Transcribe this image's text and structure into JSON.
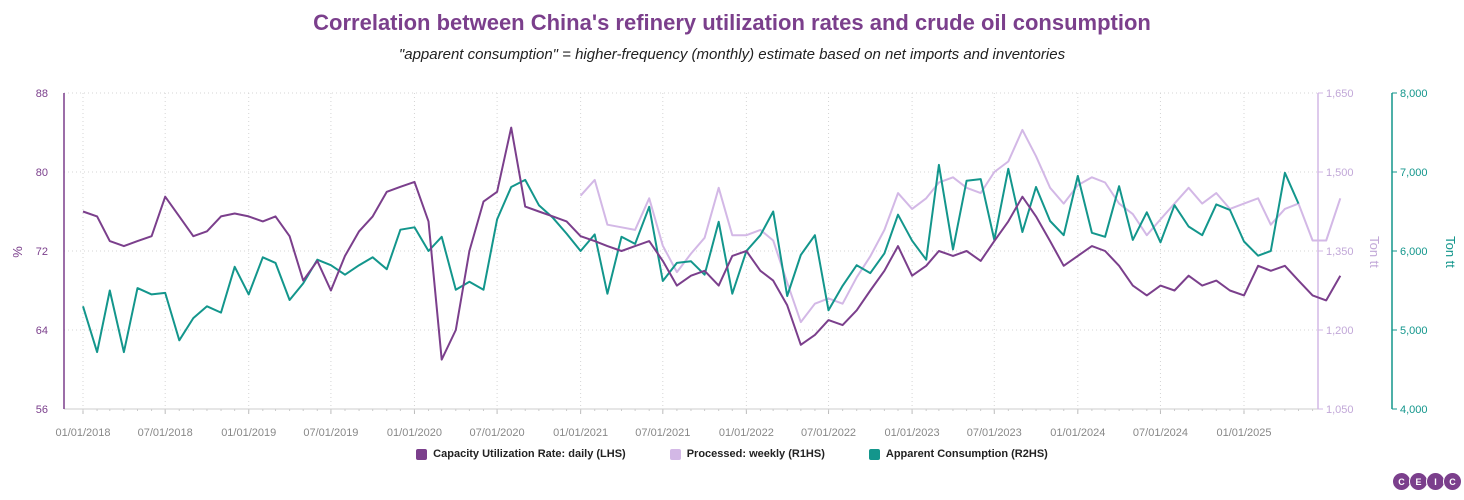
{
  "chart_data": {
    "type": "line",
    "title": "Correlation between China's refinery utilization rates and crude oil consumption",
    "subtitle": "\"apparent consumption\" = higher-frequency (monthly) estimate based on net imports and inventories",
    "x_ticks": [
      "01/01/2018",
      "07/01/2018",
      "01/01/2019",
      "07/01/2019",
      "01/01/2020",
      "07/01/2020",
      "01/01/2021",
      "07/01/2021",
      "01/01/2022",
      "07/01/2022",
      "01/01/2023",
      "07/01/2023",
      "01/01/2024",
      "07/01/2024",
      "01/01/2025"
    ],
    "y_left": {
      "label": "%",
      "ylim": [
        56,
        88
      ],
      "ticks": [
        "56",
        "64",
        "72",
        "80",
        "88"
      ]
    },
    "y_right1": {
      "label": "Ton tt",
      "ylim": [
        1050,
        1650
      ],
      "ticks": [
        "1,050",
        "1,200",
        "1,350",
        "1,500",
        "1,650"
      ]
    },
    "y_right2": {
      "label": "Ton tt",
      "ylim": [
        4000,
        8000
      ],
      "ticks": [
        "4,000",
        "5,000",
        "6,000",
        "7,000",
        "8,000"
      ]
    },
    "grid": true,
    "legend_position": "bottom",
    "series": [
      {
        "name": "Capacity Utilization Rate: daily (LHS)",
        "axis": "left",
        "color": "#7b3f8c",
        "points": [
          [
            "2018-01-01",
            76.0
          ],
          [
            "2018-02-01",
            75.5
          ],
          [
            "2018-03-01",
            73.0
          ],
          [
            "2018-04-01",
            72.5
          ],
          [
            "2018-05-01",
            73.0
          ],
          [
            "2018-06-01",
            73.5
          ],
          [
            "2018-07-01",
            77.5
          ],
          [
            "2018-08-01",
            75.5
          ],
          [
            "2018-09-01",
            73.5
          ],
          [
            "2018-10-01",
            74.0
          ],
          [
            "2018-11-01",
            75.5
          ],
          [
            "2018-12-01",
            75.8
          ],
          [
            "2019-01-01",
            75.5
          ],
          [
            "2019-02-01",
            75.0
          ],
          [
            "2019-03-01",
            75.5
          ],
          [
            "2019-04-01",
            73.5
          ],
          [
            "2019-05-01",
            69.0
          ],
          [
            "2019-06-01",
            71.0
          ],
          [
            "2019-07-01",
            68.0
          ],
          [
            "2019-08-01",
            71.5
          ],
          [
            "2019-09-01",
            74.0
          ],
          [
            "2019-10-01",
            75.5
          ],
          [
            "2019-11-01",
            78.0
          ],
          [
            "2019-12-01",
            78.5
          ],
          [
            "2020-01-01",
            79.0
          ],
          [
            "2020-02-01",
            75.0
          ],
          [
            "2020-03-01",
            61.0
          ],
          [
            "2020-04-01",
            64.0
          ],
          [
            "2020-05-01",
            72.0
          ],
          [
            "2020-06-01",
            77.0
          ],
          [
            "2020-07-01",
            78.0
          ],
          [
            "2020-08-01",
            84.5
          ],
          [
            "2020-09-01",
            76.5
          ],
          [
            "2020-10-01",
            76.0
          ],
          [
            "2020-11-01",
            75.5
          ],
          [
            "2020-12-01",
            75.0
          ],
          [
            "2021-01-01",
            73.5
          ],
          [
            "2021-02-01",
            73.0
          ],
          [
            "2021-03-01",
            72.5
          ],
          [
            "2021-04-01",
            72.0
          ],
          [
            "2021-05-01",
            72.5
          ],
          [
            "2021-06-01",
            73.0
          ],
          [
            "2021-07-01",
            71.0
          ],
          [
            "2021-08-01",
            68.5
          ],
          [
            "2021-09-01",
            69.5
          ],
          [
            "2021-10-01",
            70.0
          ],
          [
            "2021-11-01",
            68.5
          ],
          [
            "2021-12-01",
            71.5
          ],
          [
            "2022-01-01",
            72.0
          ],
          [
            "2022-02-01",
            70.0
          ],
          [
            "2022-03-01",
            69.0
          ],
          [
            "2022-04-01",
            66.5
          ],
          [
            "2022-05-01",
            62.5
          ],
          [
            "2022-06-01",
            63.5
          ],
          [
            "2022-07-01",
            65.0
          ],
          [
            "2022-08-01",
            64.5
          ],
          [
            "2022-09-01",
            66.0
          ],
          [
            "2022-10-01",
            68.0
          ],
          [
            "2022-11-01",
            70.0
          ],
          [
            "2022-12-01",
            72.5
          ],
          [
            "2023-01-01",
            69.5
          ],
          [
            "2023-02-01",
            70.5
          ],
          [
            "2023-03-01",
            72.0
          ],
          [
            "2023-04-01",
            71.5
          ],
          [
            "2023-05-01",
            72.0
          ],
          [
            "2023-06-01",
            71.0
          ],
          [
            "2023-07-01",
            73.0
          ],
          [
            "2023-08-01",
            75.0
          ],
          [
            "2023-09-01",
            77.5
          ],
          [
            "2023-10-01",
            75.5
          ],
          [
            "2023-11-01",
            73.0
          ],
          [
            "2023-12-01",
            70.5
          ],
          [
            "2024-01-01",
            71.5
          ],
          [
            "2024-02-01",
            72.5
          ],
          [
            "2024-03-01",
            72.0
          ],
          [
            "2024-04-01",
            70.5
          ],
          [
            "2024-05-01",
            68.5
          ],
          [
            "2024-06-01",
            67.5
          ],
          [
            "2024-07-01",
            68.5
          ],
          [
            "2024-08-01",
            68.0
          ],
          [
            "2024-09-01",
            69.5
          ],
          [
            "2024-10-01",
            68.5
          ],
          [
            "2024-11-01",
            69.0
          ],
          [
            "2024-12-01",
            68.0
          ],
          [
            "2025-01-01",
            67.5
          ],
          [
            "2025-02-01",
            70.5
          ],
          [
            "2025-03-01",
            70.0
          ],
          [
            "2025-04-01",
            70.5
          ],
          [
            "2025-05-01",
            69.0
          ],
          [
            "2025-06-01",
            67.5
          ],
          [
            "2025-07-01",
            67.0
          ],
          [
            "2025-08-01",
            69.5
          ]
        ]
      },
      {
        "name": "Processed: weekly (R1HS)",
        "axis": "right1",
        "color": "#d3b8e6",
        "points": [
          [
            "2021-01-01",
            1455
          ],
          [
            "2021-02-01",
            1485
          ],
          [
            "2021-03-01",
            1400
          ],
          [
            "2021-04-01",
            1395
          ],
          [
            "2021-05-01",
            1390
          ],
          [
            "2021-06-01",
            1450
          ],
          [
            "2021-07-01",
            1360
          ],
          [
            "2021-08-01",
            1310
          ],
          [
            "2021-09-01",
            1345
          ],
          [
            "2021-10-01",
            1375
          ],
          [
            "2021-11-01",
            1470
          ],
          [
            "2021-12-01",
            1380
          ],
          [
            "2022-01-01",
            1380
          ],
          [
            "2022-02-01",
            1390
          ],
          [
            "2022-03-01",
            1370
          ],
          [
            "2022-04-01",
            1290
          ],
          [
            "2022-05-01",
            1215
          ],
          [
            "2022-06-01",
            1250
          ],
          [
            "2022-07-01",
            1260
          ],
          [
            "2022-08-01",
            1250
          ],
          [
            "2022-09-01",
            1300
          ],
          [
            "2022-10-01",
            1340
          ],
          [
            "2022-11-01",
            1390
          ],
          [
            "2022-12-01",
            1460
          ],
          [
            "2023-01-01",
            1430
          ],
          [
            "2023-02-01",
            1450
          ],
          [
            "2023-03-01",
            1480
          ],
          [
            "2023-04-01",
            1490
          ],
          [
            "2023-05-01",
            1470
          ],
          [
            "2023-06-01",
            1460
          ],
          [
            "2023-07-01",
            1500
          ],
          [
            "2023-08-01",
            1520
          ],
          [
            "2023-09-01",
            1580
          ],
          [
            "2023-10-01",
            1530
          ],
          [
            "2023-11-01",
            1470
          ],
          [
            "2023-12-01",
            1440
          ],
          [
            "2024-01-01",
            1475
          ],
          [
            "2024-02-01",
            1490
          ],
          [
            "2024-03-01",
            1480
          ],
          [
            "2024-04-01",
            1440
          ],
          [
            "2024-05-01",
            1420
          ],
          [
            "2024-06-01",
            1380
          ],
          [
            "2024-07-01",
            1410
          ],
          [
            "2024-08-01",
            1440
          ],
          [
            "2024-09-01",
            1470
          ],
          [
            "2024-10-01",
            1440
          ],
          [
            "2024-11-01",
            1460
          ],
          [
            "2024-12-01",
            1430
          ],
          [
            "2025-01-01",
            1440
          ],
          [
            "2025-02-01",
            1450
          ],
          [
            "2025-03-01",
            1400
          ],
          [
            "2025-04-01",
            1430
          ],
          [
            "2025-05-01",
            1440
          ],
          [
            "2025-06-01",
            1370
          ],
          [
            "2025-07-01",
            1370
          ],
          [
            "2025-08-01",
            1450
          ]
        ]
      },
      {
        "name": "Apparent Consumption (R2HS)",
        "axis": "right2",
        "color": "#13968c",
        "points": [
          [
            "2018-01-01",
            5300
          ],
          [
            "2018-02-01",
            4720
          ],
          [
            "2018-03-01",
            5500
          ],
          [
            "2018-04-01",
            4720
          ],
          [
            "2018-05-01",
            5530
          ],
          [
            "2018-06-01",
            5450
          ],
          [
            "2018-07-01",
            5470
          ],
          [
            "2018-08-01",
            4870
          ],
          [
            "2018-09-01",
            5150
          ],
          [
            "2018-10-01",
            5300
          ],
          [
            "2018-11-01",
            5220
          ],
          [
            "2018-12-01",
            5800
          ],
          [
            "2019-01-01",
            5450
          ],
          [
            "2019-02-01",
            5920
          ],
          [
            "2019-03-01",
            5850
          ],
          [
            "2019-04-01",
            5380
          ],
          [
            "2019-05-01",
            5590
          ],
          [
            "2019-06-01",
            5890
          ],
          [
            "2019-07-01",
            5820
          ],
          [
            "2019-08-01",
            5700
          ],
          [
            "2019-09-01",
            5820
          ],
          [
            "2019-10-01",
            5920
          ],
          [
            "2019-11-01",
            5770
          ],
          [
            "2019-12-01",
            6270
          ],
          [
            "2020-01-01",
            6300
          ],
          [
            "2020-02-01",
            6000
          ],
          [
            "2020-03-01",
            6180
          ],
          [
            "2020-04-01",
            5510
          ],
          [
            "2020-05-01",
            5610
          ],
          [
            "2020-06-01",
            5510
          ],
          [
            "2020-07-01",
            6400
          ],
          [
            "2020-08-01",
            6810
          ],
          [
            "2020-09-01",
            6900
          ],
          [
            "2020-10-01",
            6580
          ],
          [
            "2020-11-01",
            6420
          ],
          [
            "2020-12-01",
            6220
          ],
          [
            "2021-01-01",
            6000
          ],
          [
            "2021-02-01",
            6210
          ],
          [
            "2021-03-01",
            5460
          ],
          [
            "2021-04-01",
            6180
          ],
          [
            "2021-05-01",
            6090
          ],
          [
            "2021-06-01",
            6560
          ],
          [
            "2021-07-01",
            5620
          ],
          [
            "2021-08-01",
            5850
          ],
          [
            "2021-09-01",
            5870
          ],
          [
            "2021-10-01",
            5700
          ],
          [
            "2021-11-01",
            6370
          ],
          [
            "2021-12-01",
            5460
          ],
          [
            "2022-01-01",
            6000
          ],
          [
            "2022-02-01",
            6200
          ],
          [
            "2022-03-01",
            6500
          ],
          [
            "2022-04-01",
            5430
          ],
          [
            "2022-05-01",
            5950
          ],
          [
            "2022-06-01",
            6200
          ],
          [
            "2022-07-01",
            5250
          ],
          [
            "2022-08-01",
            5560
          ],
          [
            "2022-09-01",
            5820
          ],
          [
            "2022-10-01",
            5720
          ],
          [
            "2022-11-01",
            5970
          ],
          [
            "2022-12-01",
            6460
          ],
          [
            "2023-01-01",
            6130
          ],
          [
            "2023-02-01",
            5890
          ],
          [
            "2023-03-01",
            7090
          ],
          [
            "2023-04-01",
            6020
          ],
          [
            "2023-05-01",
            6890
          ],
          [
            "2023-06-01",
            6910
          ],
          [
            "2023-07-01",
            6140
          ],
          [
            "2023-08-01",
            7040
          ],
          [
            "2023-09-01",
            6240
          ],
          [
            "2023-10-01",
            6810
          ],
          [
            "2023-11-01",
            6380
          ],
          [
            "2023-12-01",
            6200
          ],
          [
            "2024-01-01",
            6950
          ],
          [
            "2024-02-01",
            6230
          ],
          [
            "2024-03-01",
            6180
          ],
          [
            "2024-04-01",
            6820
          ],
          [
            "2024-05-01",
            6140
          ],
          [
            "2024-06-01",
            6490
          ],
          [
            "2024-07-01",
            6110
          ],
          [
            "2024-08-01",
            6580
          ],
          [
            "2024-09-01",
            6310
          ],
          [
            "2024-10-01",
            6200
          ],
          [
            "2024-11-01",
            6590
          ],
          [
            "2024-12-01",
            6520
          ],
          [
            "2025-01-01",
            6120
          ],
          [
            "2025-02-01",
            5940
          ],
          [
            "2025-03-01",
            6000
          ],
          [
            "2025-04-01",
            6990
          ],
          [
            "2025-05-01",
            6600
          ]
        ]
      }
    ]
  },
  "logo": "CEIC"
}
